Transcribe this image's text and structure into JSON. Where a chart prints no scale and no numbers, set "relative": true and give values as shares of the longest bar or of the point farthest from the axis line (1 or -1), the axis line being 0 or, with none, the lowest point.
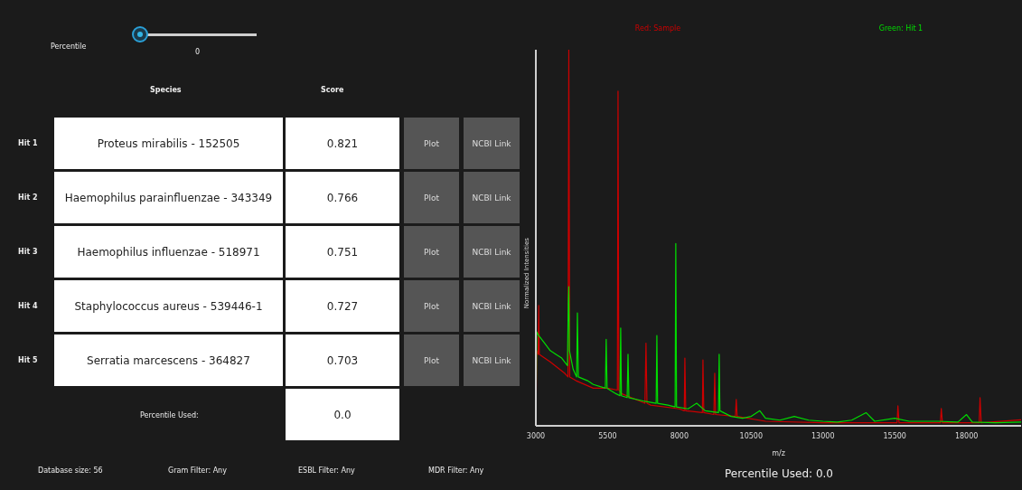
{
  "chart_data": [
    {
      "type": "other",
      "categories": [
        "Proteus mirabilis - 152505",
        "Haemophilus parainfluenzae - 343349",
        "Haemophilus influenzae - 518971",
        "Staphylococcus aureus - 539446-1",
        "Serratia marcescens - 364827"
      ],
      "y_categories": [
        "Hit 1",
        "Hit 2",
        "Hit 3",
        "Hit 4",
        "Hit 5"
      ],
      "values": [
        0.821,
        0.766,
        0.751,
        0.727,
        0.703
      ],
      "data_labels": true,
      "annotations": [
        "Percentile",
        "0",
        "Species",
        "Score",
        "Percentile Used:",
        "0.0",
        "Database size: 56",
        "Gram Filter: Any",
        "ESBL Filter: Any",
        "MDR Filter: Any",
        "Plot",
        "NCBI Link"
      ]
    },
    {
      "type": "line",
      "relative": true,
      "xlim": [
        3000,
        19900
      ],
      "xticks": [
        3000,
        5500,
        8000,
        10500,
        13000,
        15500,
        18000
      ],
      "xlabel": "m/z",
      "ylabel": "Normalized Intensities",
      "legend": "top",
      "marker": "none",
      "line_style": "solid",
      "grid": false,
      "annotations": [
        "Percentile Used: 0.0"
      ],
      "series": [
        {
          "name": "Red: Sample",
          "color": "#cc0000",
          "x": [
            3000,
            3030,
            3080,
            3100,
            3120,
            3500,
            4000,
            4120,
            4148,
            4180,
            4400,
            5000,
            5500,
            5840,
            5862,
            5890,
            6000,
            6800,
            6836,
            6870,
            7000,
            8000,
            8170,
            8190,
            8220,
            8800,
            8820,
            8850,
            9200,
            9230,
            9260,
            9950,
            9980,
            10010,
            11000,
            13000,
            15580,
            15610,
            15650,
            17090,
            17120,
            17160,
            18440,
            18470,
            18510,
            19900
          ],
          "values": [
            0,
            0.2,
            0.19,
            0.32,
            0.19,
            0.17,
            0.14,
            0.13,
            1.0,
            0.13,
            0.12,
            0.1,
            0.1,
            0.095,
            0.89,
            0.095,
            0.085,
            0.06,
            0.22,
            0.06,
            0.055,
            0.045,
            0.04,
            0.18,
            0.04,
            0.035,
            0.175,
            0.035,
            0.03,
            0.14,
            0.03,
            0.025,
            0.07,
            0.025,
            0.012,
            0.008,
            0.008,
            0.053,
            0.008,
            0.008,
            0.046,
            0.008,
            0.008,
            0.075,
            0.008,
            0.016
          ]
        },
        {
          "name": "Green: Hit 1",
          "color": "#00dd00",
          "x": [
            3000,
            3030,
            3100,
            3300,
            3500,
            3700,
            3900,
            4100,
            4130,
            4148,
            4170,
            4300,
            4420,
            4447,
            4480,
            4800,
            5000,
            5420,
            5450,
            5480,
            5800,
            5930,
            5955,
            5980,
            6180,
            6210,
            6240,
            6800,
            7190,
            7215,
            7240,
            7600,
            7850,
            7874,
            7900,
            8300,
            8600,
            8900,
            9360,
            9385,
            9410,
            9800,
            10200,
            10500,
            10800,
            11000,
            11500,
            12000,
            12500,
            13000,
            13500,
            14000,
            14500,
            14800,
            15500,
            16000,
            17000,
            17700,
            18000,
            18200,
            19000,
            19900
          ],
          "values": [
            0,
            0.25,
            0.24,
            0.22,
            0.2,
            0.19,
            0.18,
            0.16,
            0.33,
            0.37,
            0.2,
            0.15,
            0.13,
            0.3,
            0.13,
            0.12,
            0.11,
            0.1,
            0.23,
            0.1,
            0.085,
            0.08,
            0.26,
            0.08,
            0.075,
            0.19,
            0.075,
            0.065,
            0.06,
            0.24,
            0.06,
            0.055,
            0.05,
            0.485,
            0.05,
            0.045,
            0.06,
            0.04,
            0.035,
            0.19,
            0.04,
            0.025,
            0.02,
            0.025,
            0.04,
            0.02,
            0.015,
            0.025,
            0.015,
            0.012,
            0.01,
            0.015,
            0.035,
            0.012,
            0.02,
            0.012,
            0.012,
            0.01,
            0.03,
            0.01,
            0.008,
            0.01
          ]
        }
      ]
    }
  ]
}
